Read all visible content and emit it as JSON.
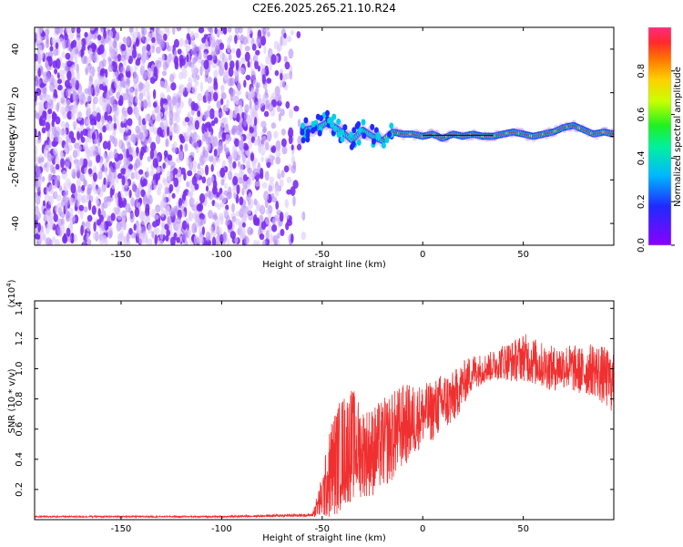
{
  "title": "C2E6.2025.265.21.10.R24",
  "colors": {
    "snr_line": "#f03030",
    "ridge_core": "#d8205a",
    "noise_purple": "#7a2cf0",
    "colormap": [
      "#8a00ff",
      "#1f2bff",
      "#00b8ff",
      "#00f0a0",
      "#20f020",
      "#c8ff00",
      "#ffd000",
      "#ff7a00",
      "#ff2a2a",
      "#ff2a80"
    ]
  },
  "chart_data": [
    {
      "id": "spectrogram",
      "type": "heatmap",
      "xlabel": "Height of straight line (km)",
      "ylabel": "Frequency (Hz)",
      "xlim": [
        -193,
        95
      ],
      "ylim": [
        -50,
        50
      ],
      "xticks": [
        -150,
        -100,
        -50,
        0,
        50
      ],
      "yticks": [
        -40,
        -20,
        0,
        20,
        40
      ],
      "ridge": {
        "x": [
          -58,
          -52,
          -48,
          -45,
          -40,
          -35,
          -30,
          -25,
          -20,
          -15,
          -10,
          -5,
          0,
          5,
          10,
          15,
          20,
          25,
          30,
          35,
          40,
          45,
          50,
          55,
          60,
          65,
          70,
          75,
          80,
          85,
          90,
          95
        ],
        "frequency": [
          3,
          4,
          6,
          5,
          2,
          -2,
          3,
          0,
          -2,
          2,
          1,
          1,
          0,
          1,
          -1,
          1,
          0,
          1,
          0,
          0,
          1,
          2,
          1,
          0,
          1,
          2,
          4,
          5,
          3,
          1,
          2,
          1
        ]
      },
      "colorbar": {
        "label": "Normalized spectral amplitude",
        "range": [
          0,
          1
        ],
        "ticks": [
          "0.0",
          "0.2",
          "0.4",
          "0.6",
          "0.8"
        ]
      }
    },
    {
      "id": "snr",
      "type": "line",
      "xlabel": "Height of straight line (km)",
      "ylabel": "SNR (10 * v/v)",
      "scale_note": "(x10",
      "scale_exp": "4",
      "scale_close": ")",
      "xlim": [
        -193,
        95
      ],
      "ylim": [
        0,
        1.45
      ],
      "xticks": [
        -150,
        -100,
        -50,
        0,
        50
      ],
      "yticks": [
        "0.2",
        "0.4",
        "0.6",
        "0.8",
        "1.0",
        "1.2",
        "1.4"
      ],
      "series": [
        {
          "x": [
            -193,
            -150,
            -100,
            -55,
            -50,
            -45,
            -40,
            -35,
            -30,
            -25,
            -20,
            -15,
            -10,
            -5,
            0,
            5,
            10,
            15,
            20,
            25,
            30,
            35,
            40,
            45,
            50,
            55,
            60,
            65,
            70,
            75,
            80,
            85,
            90,
            95
          ],
          "mean": [
            0.02,
            0.02,
            0.02,
            0.03,
            0.15,
            0.35,
            0.45,
            0.5,
            0.45,
            0.45,
            0.5,
            0.55,
            0.62,
            0.65,
            0.7,
            0.72,
            0.78,
            0.8,
            0.9,
            0.98,
            1.0,
            1.02,
            1.05,
            1.05,
            1.08,
            1.05,
            1.02,
            1.0,
            1.02,
            1.0,
            0.98,
            1.0,
            0.95,
            0.9
          ],
          "spread": [
            0.005,
            0.005,
            0.005,
            0.01,
            0.15,
            0.35,
            0.38,
            0.38,
            0.3,
            0.3,
            0.3,
            0.3,
            0.28,
            0.25,
            0.2,
            0.2,
            0.2,
            0.18,
            0.15,
            0.12,
            0.1,
            0.1,
            0.12,
            0.14,
            0.16,
            0.16,
            0.15,
            0.15,
            0.15,
            0.16,
            0.16,
            0.18,
            0.2,
            0.2
          ]
        }
      ]
    }
  ]
}
